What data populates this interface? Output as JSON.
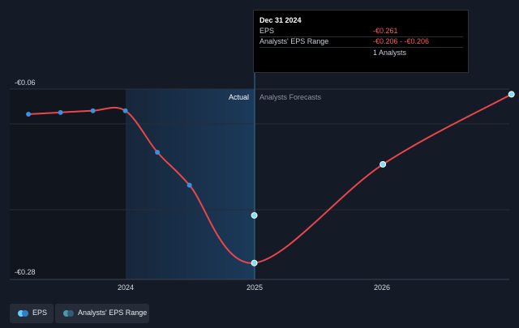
{
  "chart_data": {
    "type": "line",
    "y_tick_labels": [
      "-€0.06",
      "-€0.28"
    ],
    "ylim": [
      -0.28,
      -0.06
    ],
    "x_tick_labels": [
      "2024",
      "2025",
      "2026"
    ],
    "region_labels": {
      "actual": "Actual",
      "forecast": "Analysts Forecasts"
    },
    "series": [
      {
        "name": "EPS",
        "color": "#e8464b",
        "points": [
          {
            "x": "2023-03-31",
            "y": -0.089
          },
          {
            "x": "2023-06-30",
            "y": -0.087
          },
          {
            "x": "2023-09-30",
            "y": -0.085
          },
          {
            "x": "2023-12-31",
            "y": -0.085
          },
          {
            "x": "2024-03-31",
            "y": -0.133
          },
          {
            "x": "2024-06-30",
            "y": -0.171
          },
          {
            "x": "2024-12-31",
            "y": -0.261
          },
          {
            "x": "2025-12-31",
            "y": -0.147
          },
          {
            "x": "2026-12-31",
            "y": -0.066
          }
        ]
      },
      {
        "name": "Analysts' EPS Range",
        "points": [
          {
            "x": "2024-12-31",
            "y": -0.206
          }
        ]
      }
    ]
  },
  "tooltip": {
    "date": "Dec 31 2024",
    "eps_label": "EPS",
    "eps_value": "-€0.261",
    "range_label": "Analysts' EPS Range",
    "range_value": "-€0.206 - -€0.206",
    "analysts": "1 Analysts"
  },
  "legend": {
    "eps_label": "EPS",
    "range_label": "Analysts' EPS Range",
    "colors": {
      "eps_dot_a": "#5fd0ff",
      "eps_dot_b": "#2f7fc7",
      "range_dot_a": "#4a9aa8",
      "range_dot_b": "#2d5f7a"
    }
  }
}
